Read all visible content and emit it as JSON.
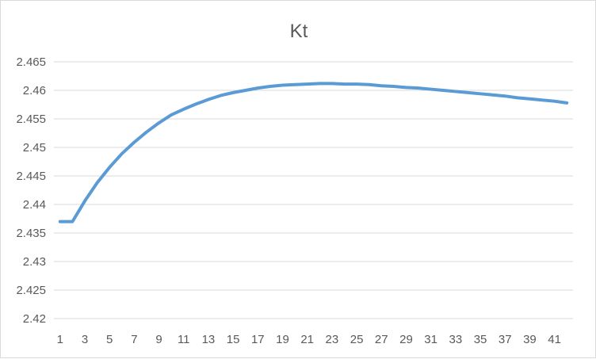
{
  "chart_data": {
    "type": "line",
    "title": "Kt",
    "xlabel": "",
    "ylabel": "",
    "x": [
      1,
      2,
      3,
      4,
      5,
      6,
      7,
      8,
      9,
      10,
      11,
      12,
      13,
      14,
      15,
      16,
      17,
      18,
      19,
      20,
      21,
      22,
      23,
      24,
      25,
      26,
      27,
      28,
      29,
      30,
      31,
      32,
      33,
      34,
      35,
      36,
      37,
      38,
      39,
      40,
      41,
      42
    ],
    "x_tick_labels": [
      "1",
      "3",
      "5",
      "7",
      "9",
      "11",
      "13",
      "15",
      "17",
      "19",
      "21",
      "23",
      "25",
      "27",
      "29",
      "31",
      "33",
      "35",
      "37",
      "39",
      "41"
    ],
    "y_tick_labels": [
      "2.42",
      "2.425",
      "2.43",
      "2.435",
      "2.44",
      "2.445",
      "2.45",
      "2.455",
      "2.46",
      "2.465"
    ],
    "ylim": [
      2.42,
      2.465
    ],
    "grid": true,
    "legend": "none",
    "series": [
      {
        "color": "#5b9bd5",
        "values": [
          2.437,
          2.437,
          2.4406,
          2.4438,
          2.4465,
          2.4489,
          2.4509,
          2.4527,
          2.4543,
          2.4557,
          2.4567,
          2.4576,
          2.4584,
          2.4591,
          2.4596,
          2.46,
          2.4604,
          2.4607,
          2.4609,
          2.461,
          2.4611,
          2.4612,
          2.4612,
          2.4611,
          2.4611,
          2.461,
          2.4608,
          2.4607,
          2.4605,
          2.4604,
          2.4602,
          2.46,
          2.4598,
          2.4596,
          2.4594,
          2.4592,
          2.459,
          2.4587,
          2.4585,
          2.4583,
          2.4581,
          2.4578
        ]
      }
    ]
  }
}
